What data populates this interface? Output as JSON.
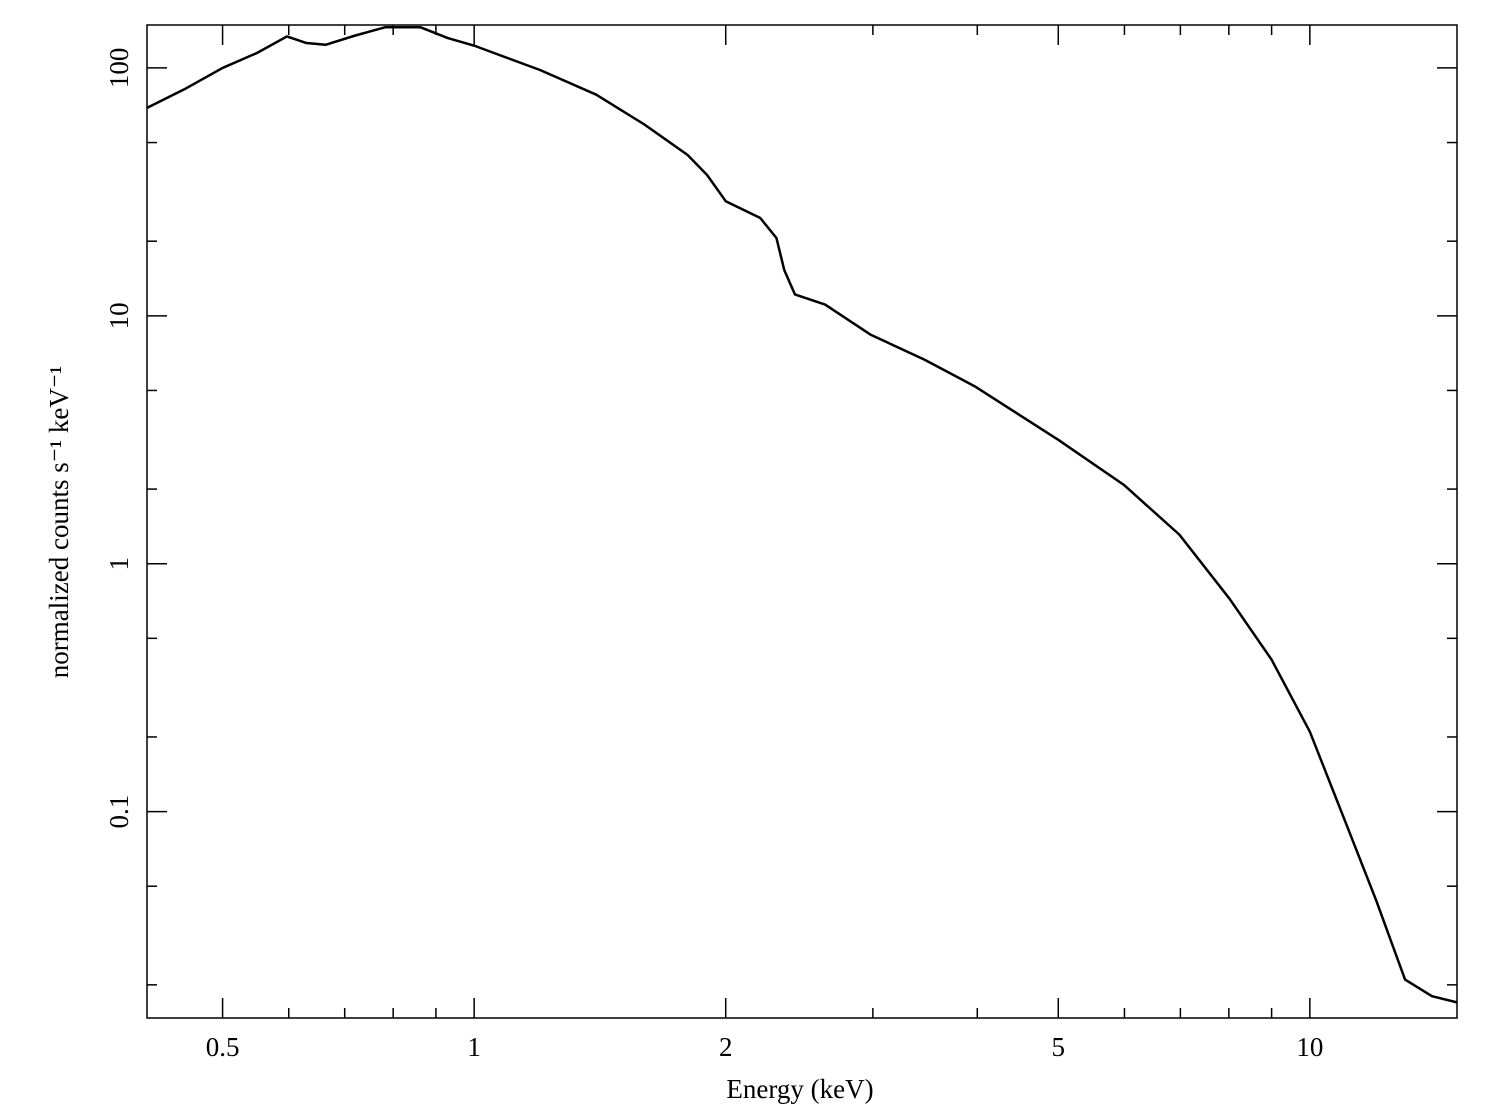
{
  "chart_data": {
    "type": "line",
    "xlabel": "Energy (keV)",
    "ylabel": "normalized counts s⁻¹ keV⁻¹",
    "xlog": true,
    "ylog": true,
    "color": "#000000",
    "xlim": [
      0.406,
      15.0
    ],
    "ylim": [
      0.0147,
      149
    ],
    "xticks": [
      0.5,
      1,
      2,
      5,
      10
    ],
    "yticks": [
      0.1,
      1,
      10,
      100
    ],
    "xminorticks": [
      0.6,
      0.7,
      0.8,
      0.9,
      3,
      4,
      6,
      7,
      8,
      9
    ],
    "yminorticks": [
      0.02,
      0.05,
      0.2,
      0.5,
      2,
      5,
      20,
      50
    ],
    "x": [
      0.406,
      0.45,
      0.5,
      0.55,
      0.597,
      0.63,
      0.664,
      0.72,
      0.783,
      0.862,
      0.93,
      1.0,
      1.2,
      1.4,
      1.6,
      1.8,
      1.9,
      2.0,
      2.2,
      2.3,
      2.35,
      2.42,
      2.63,
      2.98,
      3.46,
      3.97,
      5.0,
      5.99,
      6.98,
      8.02,
      9.0,
      10,
      11,
      12,
      13,
      14,
      15
    ],
    "values": [
      69,
      82,
      100,
      115,
      134,
      126,
      124,
      135,
      146,
      146,
      132,
      123,
      98,
      78,
      59,
      44.6,
      37,
      29,
      24.8,
      20.6,
      15.3,
      12.2,
      11.1,
      8.4,
      6.65,
      5.2,
      3.16,
      2.08,
      1.31,
      0.72,
      0.41,
      0.21,
      0.093,
      0.044,
      0.021,
      0.018,
      0.017
    ]
  }
}
